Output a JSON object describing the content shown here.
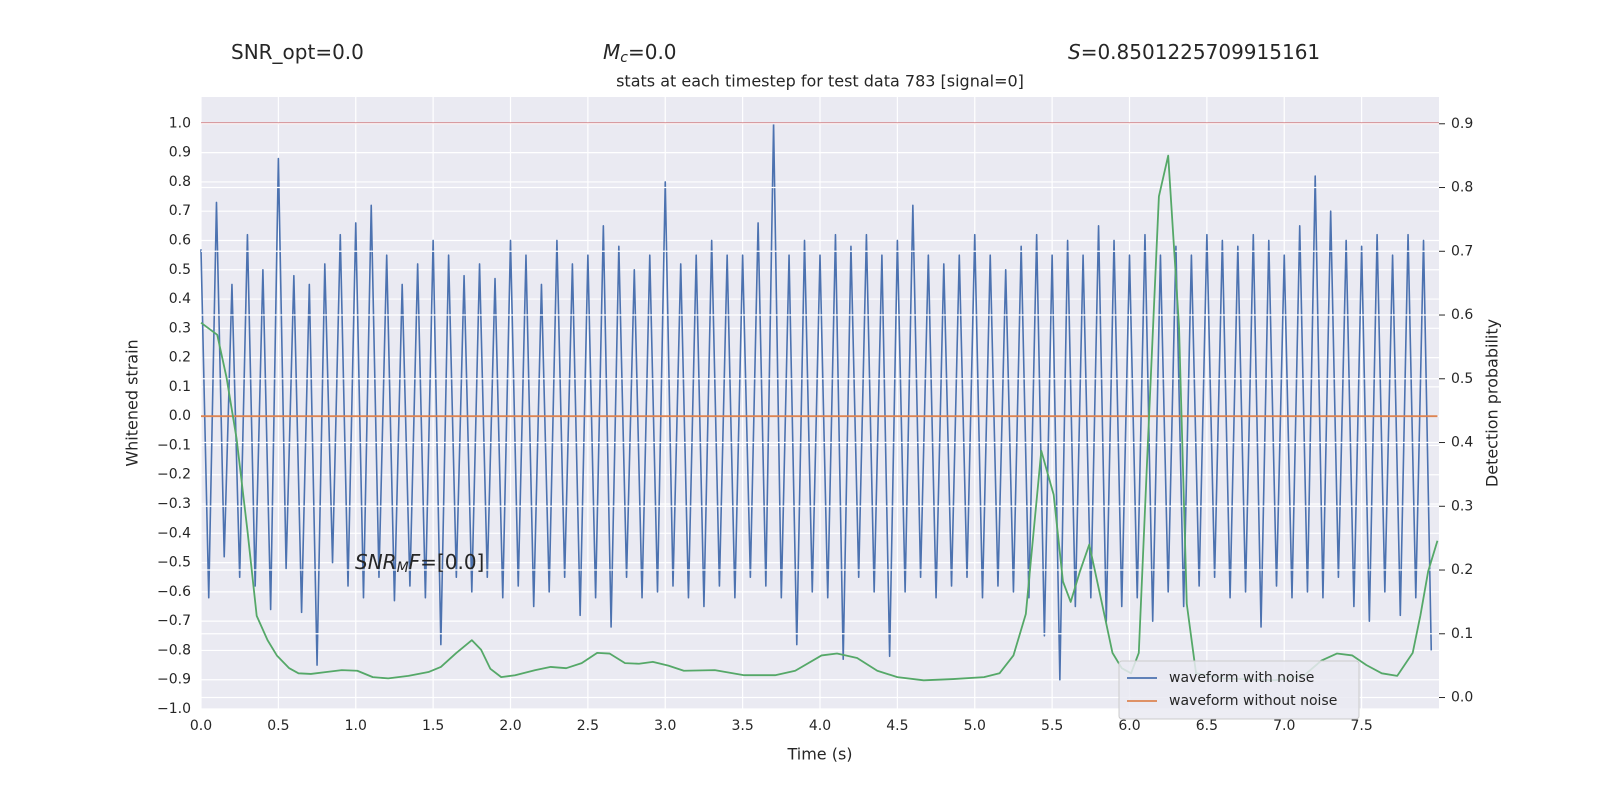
{
  "chart_data": {
    "type": "line",
    "title": "stats at each timestep for test data 783 [signal=0]",
    "header": [
      {
        "segments": [
          {
            "text": "SNR_opt=0.0"
          }
        ]
      },
      {
        "segments": [
          {
            "text": "M",
            "style": "italic"
          },
          {
            "text": "c",
            "style": "sub"
          },
          {
            "text": "=0.0"
          }
        ]
      },
      {
        "segments": [
          {
            "text": "S",
            "style": "italic"
          },
          {
            "text": "=0.8501225709915161"
          }
        ]
      }
    ],
    "annotations": [
      {
        "segments": [
          {
            "text": "SNR",
            "style": "italic"
          },
          {
            "text": "M",
            "style": "sub"
          },
          {
            "text": "F",
            "style": "italic"
          },
          {
            "text": "=[0.0]"
          }
        ]
      }
    ],
    "xlabel": "Time (s)",
    "ylabel": "Whitened strain",
    "y2label": "Detection probability",
    "xlim": [
      0,
      8
    ],
    "ylim": [
      -1.0,
      1.09
    ],
    "y2lim": [
      -0.018,
      0.942
    ],
    "xticks": [
      {
        "value": 0,
        "label": "0.0"
      },
      0.5,
      {
        "value": 1,
        "label": "1.0"
      },
      1.5,
      {
        "value": 2,
        "label": "2.0"
      },
      2.5,
      {
        "value": 3,
        "label": "3.0"
      },
      3.5,
      {
        "value": 4,
        "label": "4.0"
      },
      4.5,
      {
        "value": 5,
        "label": "5.0"
      },
      5.5,
      {
        "value": 6,
        "label": "6.0"
      },
      6.5,
      {
        "value": 7,
        "label": "7.0"
      },
      7.5
    ],
    "yticks": [
      {
        "value": -1,
        "label": "−1.0"
      },
      {
        "value": -0.9,
        "label": "−0.9"
      },
      {
        "value": -0.8,
        "label": "−0.8"
      },
      {
        "value": -0.7,
        "label": "−0.7"
      },
      {
        "value": -0.6,
        "label": "−0.6"
      },
      {
        "value": -0.5,
        "label": "−0.5"
      },
      {
        "value": -0.4,
        "label": "−0.4"
      },
      {
        "value": -0.3,
        "label": "−0.3"
      },
      {
        "value": -0.2,
        "label": "−0.2"
      },
      {
        "value": -0.1,
        "label": "−0.1"
      },
      {
        "value": 0,
        "label": "0.0"
      },
      0.1,
      0.2,
      0.3,
      0.4,
      0.5,
      0.6,
      0.7,
      0.8,
      0.9,
      {
        "value": 1,
        "label": "1.0"
      }
    ],
    "y2ticks": [
      {
        "value": 0,
        "label": "0.0"
      },
      0.1,
      0.2,
      0.3,
      0.4,
      0.5,
      0.6,
      0.7,
      0.8,
      0.9
    ],
    "grid": true,
    "legend_loc": "lower right",
    "hlines": [
      {
        "value": 1.0,
        "color": "#c44e52"
      }
    ],
    "series": [
      {
        "name": "waveform with noise",
        "color": "#4c72b0",
        "x": [
          0,
          0.05,
          0.1,
          0.15,
          0.2,
          0.25,
          0.3,
          0.35,
          0.4,
          0.45,
          0.5,
          0.55,
          0.6,
          0.65,
          0.7,
          0.75,
          0.8,
          0.85,
          0.9,
          0.95,
          1,
          1.05,
          1.1,
          1.15,
          1.2,
          1.25,
          1.3,
          1.35,
          1.4,
          1.45,
          1.5,
          1.55,
          1.6,
          1.65,
          1.7,
          1.75,
          1.8,
          1.85,
          1.9,
          1.95,
          2,
          2.05,
          2.1,
          2.15,
          2.2,
          2.25,
          2.3,
          2.35,
          2.4,
          2.45,
          2.5,
          2.55,
          2.6,
          2.65,
          2.7,
          2.75,
          2.8,
          2.85,
          2.9,
          2.95,
          3,
          3.05,
          3.1,
          3.15,
          3.2,
          3.25,
          3.3,
          3.35,
          3.4,
          3.45,
          3.5,
          3.55,
          3.6,
          3.65,
          3.7,
          3.75,
          3.8,
          3.85,
          3.9,
          3.95,
          4,
          4.05,
          4.1,
          4.15,
          4.2,
          4.25,
          4.3,
          4.35,
          4.4,
          4.45,
          4.5,
          4.55,
          4.6,
          4.65,
          4.7,
          4.75,
          4.8,
          4.85,
          4.9,
          4.95,
          5,
          5.05,
          5.1,
          5.15,
          5.2,
          5.25,
          5.3,
          5.35,
          5.4,
          5.45,
          5.5,
          5.55,
          5.6,
          5.65,
          5.7,
          5.75,
          5.8,
          5.85,
          5.9,
          5.95,
          6,
          6.05,
          6.1,
          6.15,
          6.2,
          6.25,
          6.3,
          6.35,
          6.4,
          6.45,
          6.5,
          6.55,
          6.6,
          6.65,
          6.7,
          6.75,
          6.8,
          6.85,
          6.9,
          6.95,
          7,
          7.05,
          7.1,
          7.15,
          7.2,
          7.25,
          7.3,
          7.35,
          7.4,
          7.45,
          7.5,
          7.55,
          7.6,
          7.65,
          7.7,
          7.75,
          7.8,
          7.85,
          7.9,
          7.95
        ],
        "values": [
          0.57,
          -0.62,
          0.73,
          -0.48,
          0.45,
          -0.55,
          0.62,
          -0.58,
          0.5,
          -0.66,
          0.88,
          -0.52,
          0.48,
          -0.67,
          0.45,
          -0.85,
          0.52,
          -0.5,
          0.62,
          -0.58,
          0.66,
          -0.62,
          0.72,
          -0.55,
          0.55,
          -0.63,
          0.45,
          -0.58,
          0.52,
          -0.62,
          0.6,
          -0.78,
          0.55,
          -0.55,
          0.48,
          -0.6,
          0.52,
          -0.55,
          0.47,
          -0.62,
          0.6,
          -0.58,
          0.55,
          -0.65,
          0.45,
          -0.6,
          0.6,
          -0.55,
          0.52,
          -0.68,
          0.55,
          -0.62,
          0.65,
          -0.72,
          0.58,
          -0.55,
          0.5,
          -0.62,
          0.55,
          -0.6,
          0.8,
          -0.58,
          0.52,
          -0.62,
          0.55,
          -0.65,
          0.6,
          -0.58,
          0.55,
          -0.62,
          0.55,
          -0.55,
          0.66,
          -0.58,
          1.0,
          -0.62,
          0.55,
          -0.78,
          0.6,
          -0.6,
          0.55,
          -0.62,
          0.62,
          -0.83,
          0.58,
          -0.55,
          0.62,
          -0.6,
          0.55,
          -0.82,
          0.6,
          -0.6,
          0.72,
          -0.55,
          0.55,
          -0.62,
          0.52,
          -0.58,
          0.55,
          -0.55,
          0.62,
          -0.62,
          0.55,
          -0.58,
          0.5,
          -0.6,
          0.58,
          -0.62,
          0.62,
          -0.75,
          0.55,
          -0.9,
          0.6,
          -0.65,
          0.55,
          -0.62,
          0.65,
          -0.7,
          0.6,
          -0.65,
          0.55,
          -0.62,
          0.62,
          -0.7,
          0.55,
          -0.6,
          0.58,
          -0.65,
          0.55,
          -0.58,
          0.62,
          -0.55,
          0.6,
          -0.62,
          0.58,
          -0.6,
          0.62,
          -0.72,
          0.6,
          -0.58,
          0.55,
          -0.62,
          0.65,
          -0.6,
          0.82,
          -0.62,
          0.7,
          -0.55,
          0.6,
          -0.65,
          0.58,
          -0.7,
          0.62,
          -0.6,
          0.55,
          -0.68,
          0.62,
          -0.62,
          0.6,
          -0.8
        ]
      },
      {
        "name": "waveform without noise",
        "color": "#dd8452",
        "x": [
          0,
          7.99
        ],
        "values": [
          0,
          0
        ]
      },
      {
        "color": "#55a868",
        "axis": "y2",
        "x": [
          0,
          0.105,
          0.165,
          0.23,
          0.3,
          0.36,
          0.43,
          0.49,
          0.57,
          0.63,
          0.71,
          0.81,
          0.91,
          1.01,
          1.11,
          1.21,
          1.34,
          1.47,
          1.55,
          1.65,
          1.75,
          1.81,
          1.87,
          1.94,
          2.03,
          2.16,
          2.26,
          2.36,
          2.46,
          2.56,
          2.64,
          2.74,
          2.83,
          2.92,
          3.02,
          3.12,
          3.32,
          3.51,
          3.71,
          3.84,
          4.01,
          4.11,
          4.24,
          4.37,
          4.5,
          4.67,
          4.86,
          5.06,
          5.16,
          5.25,
          5.33,
          5.43,
          5.51,
          5.57,
          5.62,
          5.68,
          5.74,
          5.82,
          5.89,
          5.95,
          6.01,
          6.06,
          6.12,
          6.19,
          6.25,
          6.32,
          6.37,
          6.43,
          6.61,
          6.94,
          7.13,
          7.24,
          7.34,
          7.44,
          7.53,
          7.63,
          7.73,
          7.83,
          7.88,
          7.93,
          7.99
        ],
        "values": [
          0.588,
          0.569,
          0.502,
          0.406,
          0.262,
          0.128,
          0.09,
          0.066,
          0.046,
          0.038,
          0.037,
          0.04,
          0.043,
          0.042,
          0.032,
          0.03,
          0.034,
          0.04,
          0.048,
          0.07,
          0.09,
          0.075,
          0.045,
          0.032,
          0.035,
          0.043,
          0.048,
          0.046,
          0.054,
          0.07,
          0.069,
          0.054,
          0.053,
          0.056,
          0.05,
          0.042,
          0.043,
          0.035,
          0.035,
          0.042,
          0.066,
          0.069,
          0.062,
          0.042,
          0.032,
          0.027,
          0.029,
          0.032,
          0.038,
          0.066,
          0.131,
          0.387,
          0.318,
          0.182,
          0.15,
          0.198,
          0.24,
          0.15,
          0.07,
          0.046,
          0.038,
          0.07,
          0.406,
          0.786,
          0.85,
          0.582,
          0.147,
          0.038,
          0.03,
          0.027,
          0.035,
          0.058,
          0.069,
          0.066,
          0.051,
          0.038,
          0.034,
          0.07,
          0.129,
          0.198,
          0.246
        ]
      }
    ]
  }
}
